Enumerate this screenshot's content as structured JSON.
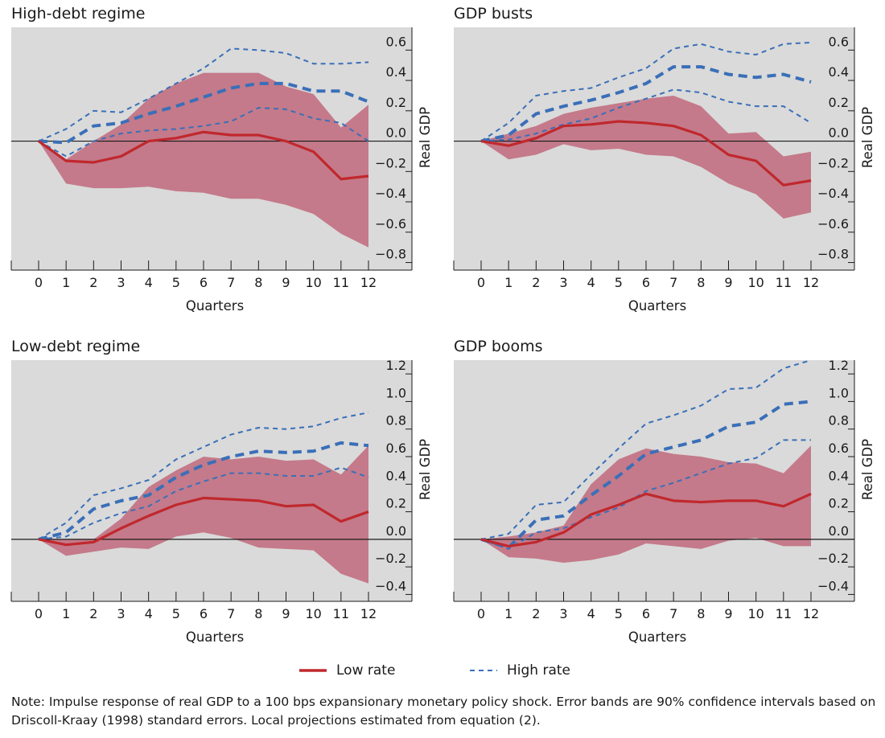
{
  "colors": {
    "band": "#c47a8a",
    "low": "#c0282d",
    "high": "#3a6fb8",
    "plot_bg": "#dadada",
    "axis": "#1a1a1a"
  },
  "legend": {
    "low_label": "Low rate",
    "high_label": "High rate"
  },
  "note": "Note:  Impulse response of real GDP to a 100 bps expansionary monetary policy shock. Error bands are 90% confidence intervals based on Driscoll-Kraay (1998) standard errors. Local projections estimated from equation (2).",
  "chart_data": [
    {
      "title": "High-debt regime",
      "type": "line",
      "xlabel": "Quarters",
      "ylabel": "Real GDP",
      "x": [
        0,
        1,
        2,
        3,
        4,
        5,
        6,
        7,
        8,
        9,
        10,
        11,
        12
      ],
      "ylim": [
        -0.85,
        0.75
      ],
      "yticks": [
        0.6,
        0.4,
        0.2,
        0.0,
        -0.2,
        -0.4,
        -0.6,
        -0.8
      ],
      "yticklabels": [
        "0.6",
        "0.4",
        "0.2",
        "0.0",
        "−0.2",
        "−0.4",
        "−0.6",
        "−0.8"
      ],
      "band": {
        "upper": [
          0,
          -0.12,
          0.0,
          0.11,
          0.28,
          0.38,
          0.45,
          0.45,
          0.45,
          0.36,
          0.31,
          0.09,
          0.24
        ],
        "lower": [
          0,
          -0.28,
          -0.31,
          -0.31,
          -0.3,
          -0.33,
          -0.34,
          -0.38,
          -0.38,
          -0.42,
          -0.48,
          -0.61,
          -0.7
        ]
      },
      "series": [
        {
          "name": "Low rate",
          "values": [
            0,
            -0.13,
            -0.14,
            -0.1,
            0.0,
            0.02,
            0.06,
            0.04,
            0.04,
            0.0,
            -0.07,
            -0.25,
            -0.23
          ]
        },
        {
          "name": "High rate",
          "values": [
            0,
            -0.01,
            0.1,
            0.12,
            0.18,
            0.23,
            0.29,
            0.35,
            0.38,
            0.38,
            0.33,
            0.33,
            0.26
          ]
        },
        {
          "name": "High rate upper",
          "values": [
            0,
            0.08,
            0.2,
            0.19,
            0.28,
            0.38,
            0.48,
            0.61,
            0.6,
            0.58,
            0.51,
            0.51,
            0.52
          ]
        },
        {
          "name": "High rate lower",
          "values": [
            0,
            -0.1,
            0.0,
            0.05,
            0.07,
            0.08,
            0.1,
            0.13,
            0.22,
            0.21,
            0.15,
            0.12,
            0.0
          ]
        }
      ]
    },
    {
      "title": "GDP busts",
      "type": "line",
      "xlabel": "Quarters",
      "ylabel": "Real GDP",
      "x": [
        0,
        1,
        2,
        3,
        4,
        5,
        6,
        7,
        8,
        9,
        10,
        11,
        12
      ],
      "ylim": [
        -0.85,
        0.75
      ],
      "yticks": [
        0.6,
        0.4,
        0.2,
        0.0,
        -0.2,
        -0.4,
        -0.6,
        -0.8
      ],
      "yticklabels": [
        "0.6",
        "0.4",
        "0.2",
        "0.0",
        "−0.2",
        "−0.4",
        "−0.6",
        "−0.8"
      ],
      "band": {
        "upper": [
          0,
          0.05,
          0.1,
          0.18,
          0.22,
          0.25,
          0.28,
          0.3,
          0.23,
          0.05,
          0.06,
          -0.1,
          -0.07
        ],
        "lower": [
          0,
          -0.12,
          -0.09,
          -0.02,
          -0.06,
          -0.05,
          -0.09,
          -0.1,
          -0.17,
          -0.28,
          -0.35,
          -0.51,
          -0.47
        ]
      },
      "series": [
        {
          "name": "Low rate",
          "values": [
            0,
            -0.03,
            0.02,
            0.1,
            0.11,
            0.13,
            0.12,
            0.1,
            0.04,
            -0.09,
            -0.13,
            -0.29,
            -0.26
          ]
        },
        {
          "name": "High rate",
          "values": [
            0,
            0.04,
            0.18,
            0.23,
            0.27,
            0.32,
            0.38,
            0.49,
            0.49,
            0.44,
            0.42,
            0.44,
            0.39
          ]
        },
        {
          "name": "High rate upper",
          "values": [
            0,
            0.12,
            0.3,
            0.33,
            0.35,
            0.42,
            0.48,
            0.61,
            0.64,
            0.59,
            0.57,
            0.64,
            0.65
          ]
        },
        {
          "name": "High rate lower",
          "values": [
            0,
            0.01,
            0.05,
            0.11,
            0.15,
            0.22,
            0.28,
            0.34,
            0.32,
            0.26,
            0.23,
            0.23,
            0.12
          ]
        }
      ]
    },
    {
      "title": "Low-debt regime",
      "type": "line",
      "xlabel": "Quarters",
      "ylabel": "Real GDP",
      "x": [
        0,
        1,
        2,
        3,
        4,
        5,
        6,
        7,
        8,
        9,
        10,
        11,
        12
      ],
      "ylim": [
        -0.45,
        1.3
      ],
      "yticks": [
        1.2,
        1.0,
        0.8,
        0.6,
        0.4,
        0.2,
        0.0,
        -0.2,
        -0.4
      ],
      "yticklabels": [
        "1.2",
        "1.0",
        "0.8",
        "0.6",
        "0.4",
        "0.2",
        "0.0",
        "−0.2",
        "−0.4"
      ],
      "band": {
        "upper": [
          0,
          0.0,
          0.0,
          0.15,
          0.38,
          0.5,
          0.6,
          0.58,
          0.6,
          0.57,
          0.58,
          0.47,
          0.68
        ],
        "lower": [
          0,
          -0.12,
          -0.09,
          -0.06,
          -0.07,
          0.02,
          0.05,
          0.01,
          -0.06,
          -0.07,
          -0.08,
          -0.25,
          -0.32
        ]
      },
      "series": [
        {
          "name": "Low rate",
          "values": [
            0,
            -0.04,
            -0.02,
            0.08,
            0.17,
            0.25,
            0.3,
            0.29,
            0.28,
            0.24,
            0.25,
            0.13,
            0.2
          ]
        },
        {
          "name": "High rate",
          "values": [
            0,
            0.05,
            0.22,
            0.28,
            0.32,
            0.45,
            0.54,
            0.6,
            0.64,
            0.63,
            0.64,
            0.7,
            0.68
          ]
        },
        {
          "name": "High rate upper",
          "values": [
            0,
            0.12,
            0.32,
            0.37,
            0.43,
            0.58,
            0.67,
            0.76,
            0.81,
            0.8,
            0.82,
            0.88,
            0.92
          ]
        },
        {
          "name": "High rate lower",
          "values": [
            0,
            0.02,
            0.12,
            0.19,
            0.24,
            0.35,
            0.42,
            0.48,
            0.48,
            0.46,
            0.46,
            0.52,
            0.45
          ]
        }
      ]
    },
    {
      "title": "GDP booms",
      "type": "line",
      "xlabel": "Quarters",
      "ylabel": "Real GDP",
      "x": [
        0,
        1,
        2,
        3,
        4,
        5,
        6,
        7,
        8,
        9,
        10,
        11,
        12
      ],
      "ylim": [
        -0.45,
        1.3
      ],
      "yticks": [
        1.2,
        1.0,
        0.8,
        0.6,
        0.4,
        0.2,
        0.0,
        -0.2,
        -0.4
      ],
      "yticklabels": [
        "1.2",
        "1.0",
        "0.8",
        "0.6",
        "0.4",
        "0.2",
        "0.0",
        "−0.2",
        "−0.4"
      ],
      "band": {
        "upper": [
          0,
          0.02,
          0.05,
          0.1,
          0.4,
          0.58,
          0.66,
          0.62,
          0.6,
          0.56,
          0.55,
          0.48,
          0.68
        ],
        "lower": [
          0,
          -0.13,
          -0.14,
          -0.17,
          -0.15,
          -0.11,
          -0.03,
          -0.05,
          -0.07,
          -0.01,
          0.01,
          -0.05,
          -0.05
        ]
      },
      "series": [
        {
          "name": "Low rate",
          "values": [
            0,
            -0.05,
            -0.02,
            0.05,
            0.18,
            0.25,
            0.33,
            0.28,
            0.27,
            0.28,
            0.28,
            0.24,
            0.33
          ]
        },
        {
          "name": "High rate",
          "values": [
            0,
            -0.06,
            0.14,
            0.17,
            0.32,
            0.46,
            0.62,
            0.67,
            0.72,
            0.82,
            0.85,
            0.98,
            1.0
          ]
        },
        {
          "name": "High rate upper",
          "values": [
            0,
            0.04,
            0.25,
            0.27,
            0.47,
            0.66,
            0.84,
            0.9,
            0.97,
            1.09,
            1.1,
            1.24,
            1.3
          ]
        },
        {
          "name": "High rate lower",
          "values": [
            0,
            -0.07,
            0.05,
            0.08,
            0.16,
            0.23,
            0.35,
            0.41,
            0.48,
            0.55,
            0.59,
            0.72,
            0.72
          ]
        }
      ]
    }
  ]
}
